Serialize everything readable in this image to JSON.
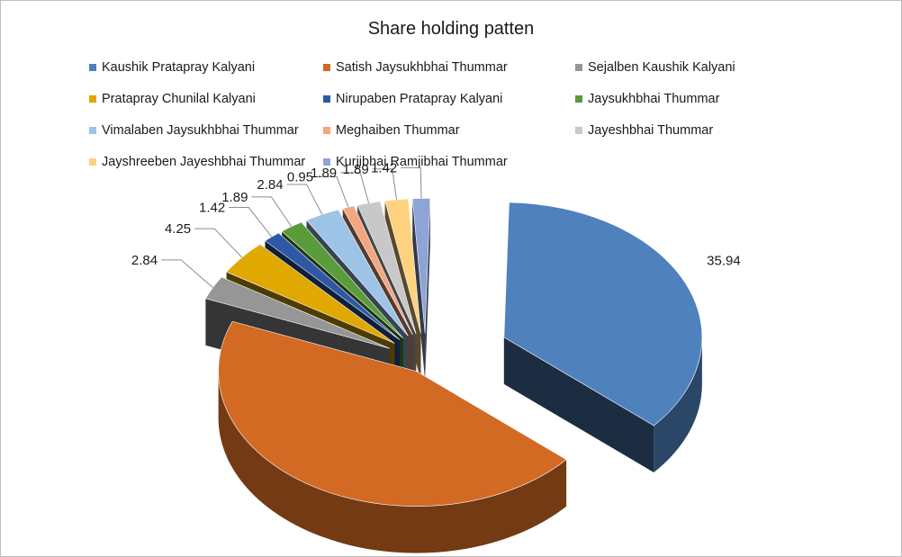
{
  "chart_data": {
    "type": "pie",
    "title": "Share holding patten",
    "series": [
      {
        "name": "Kaushik Pratapray Kalyani",
        "value": 35.94,
        "color": "#4f81bd"
      },
      {
        "name": "Satish Jaysukhbhai Thummar",
        "value": 44.69,
        "color": "#d26a24"
      },
      {
        "name": "Sejalben Kaushik Kalyani",
        "value": 2.84,
        "color": "#969696"
      },
      {
        "name": "Pratapray Chunilal Kalyani",
        "value": 4.25,
        "color": "#e0a800"
      },
      {
        "name": "Nirupaben Pratapray Kalyani",
        "value": 1.42,
        "color": "#2e58a6"
      },
      {
        "name": "Jaysukhbhai Thummar",
        "value": 1.89,
        "color": "#5a9b3a"
      },
      {
        "name": "Vimalaben Jaysukhbhai Thummar",
        "value": 2.84,
        "color": "#9dc3e6"
      },
      {
        "name": "Meghaiben Thummar",
        "value": 0.95,
        "color": "#f4a582"
      },
      {
        "name": "Jayeshbhai Thummar",
        "value": 1.89,
        "color": "#c8c8c8"
      },
      {
        "name": "Jayshreeben Jayeshbhai Thummar",
        "value": 1.89,
        "color": "#ffd27f"
      },
      {
        "name": "Kurjibhai Ramjibhai Thummar",
        "value": 1.42,
        "color": "#8ea3d6"
      }
    ],
    "legend_position": "top",
    "style": "3d-exploded"
  }
}
